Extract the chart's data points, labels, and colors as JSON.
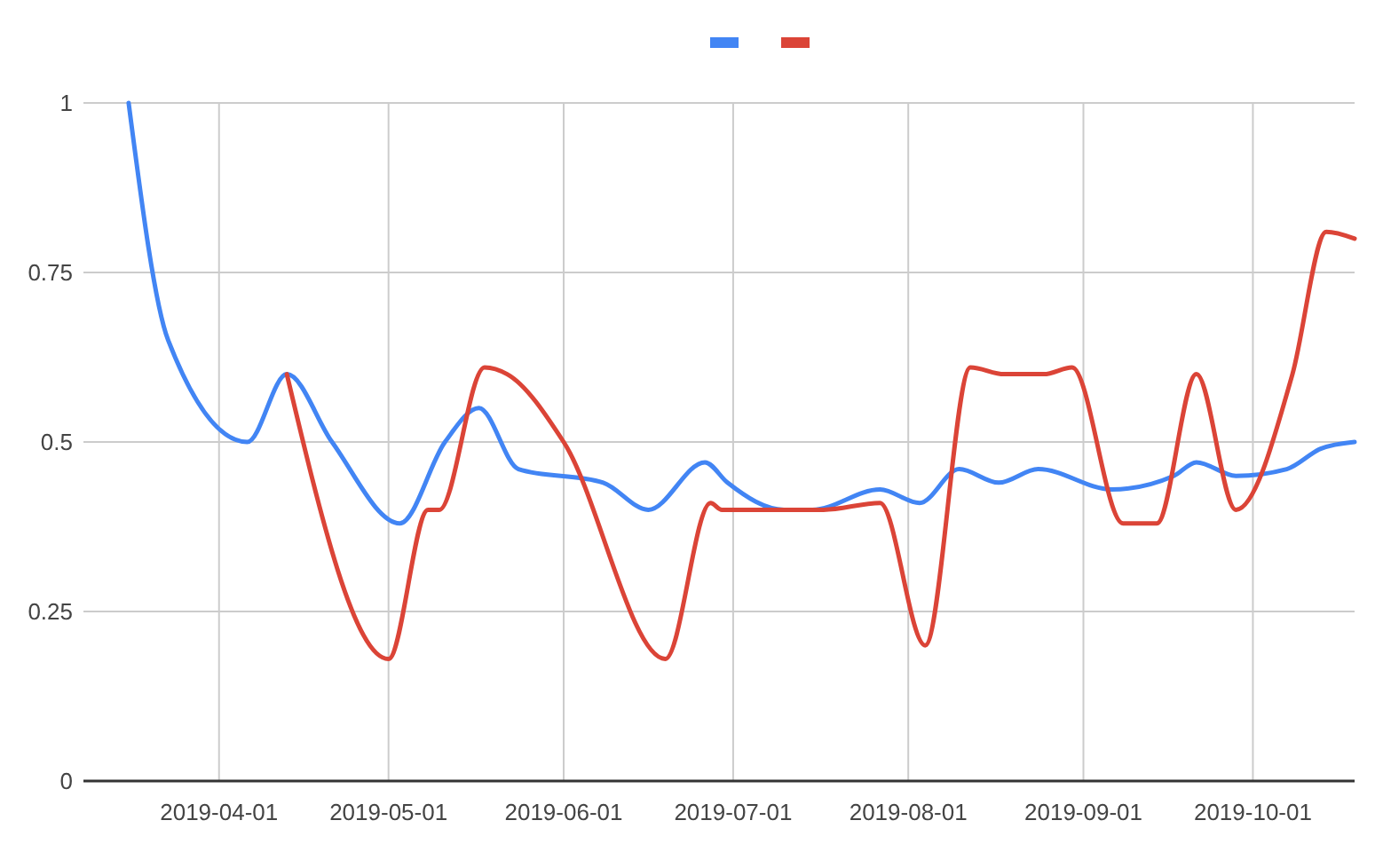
{
  "chart_data": {
    "type": "line",
    "xlim": [
      "2019-03-08",
      "2019-10-19"
    ],
    "xticks": [
      "2019-04-01",
      "2019-05-01",
      "2019-06-01",
      "2019-07-01",
      "2019-08-01",
      "2019-09-01",
      "2019-10-01"
    ],
    "ylim": [
      0,
      1
    ],
    "yticks": [
      0,
      0.25,
      0.5,
      0.75,
      1
    ],
    "grid": true,
    "series": [
      {
        "color": "#4285f4",
        "x": [
          "2019-03-16",
          "2019-03-23",
          "2019-04-06",
          "2019-04-13",
          "2019-04-21",
          "2019-05-03",
          "2019-05-11",
          "2019-05-17",
          "2019-05-24",
          "2019-06-08",
          "2019-06-16",
          "2019-06-26",
          "2019-06-30",
          "2019-07-10",
          "2019-07-15",
          "2019-07-27",
          "2019-08-03",
          "2019-08-10",
          "2019-08-17",
          "2019-08-24",
          "2019-09-06",
          "2019-09-17",
          "2019-09-21",
          "2019-09-28",
          "2019-10-07",
          "2019-10-13",
          "2019-10-19"
        ],
        "values": [
          1,
          0.65,
          0.5,
          0.6,
          0.5,
          0.38,
          0.5,
          0.55,
          0.46,
          0.44,
          0.4,
          0.47,
          0.44,
          0.4,
          0.4,
          0.43,
          0.41,
          0.46,
          0.44,
          0.46,
          0.43,
          0.45,
          0.47,
          0.45,
          0.46,
          0.49,
          0.5
        ]
      },
      {
        "color": "#db4437",
        "x": [
          "2019-04-13",
          "2019-05-01",
          "2019-05-08",
          "2019-05-10",
          "2019-05-18",
          "2019-05-22",
          "2019-06-01",
          "2019-06-19",
          "2019-06-27",
          "2019-06-29",
          "2019-07-17",
          "2019-07-27",
          "2019-08-04",
          "2019-08-12",
          "2019-08-18",
          "2019-08-25",
          "2019-08-30",
          "2019-09-08",
          "2019-09-14",
          "2019-09-21",
          "2019-09-28",
          "2019-10-08",
          "2019-10-14",
          "2019-10-19"
        ],
        "values": [
          0.6,
          0.18,
          0.4,
          0.4,
          0.61,
          0.6,
          0.5,
          0.18,
          0.41,
          0.4,
          0.4,
          0.41,
          0.2,
          0.61,
          0.6,
          0.6,
          0.61,
          0.38,
          0.38,
          0.6,
          0.4,
          0.6,
          0.81,
          0.8
        ]
      }
    ]
  }
}
